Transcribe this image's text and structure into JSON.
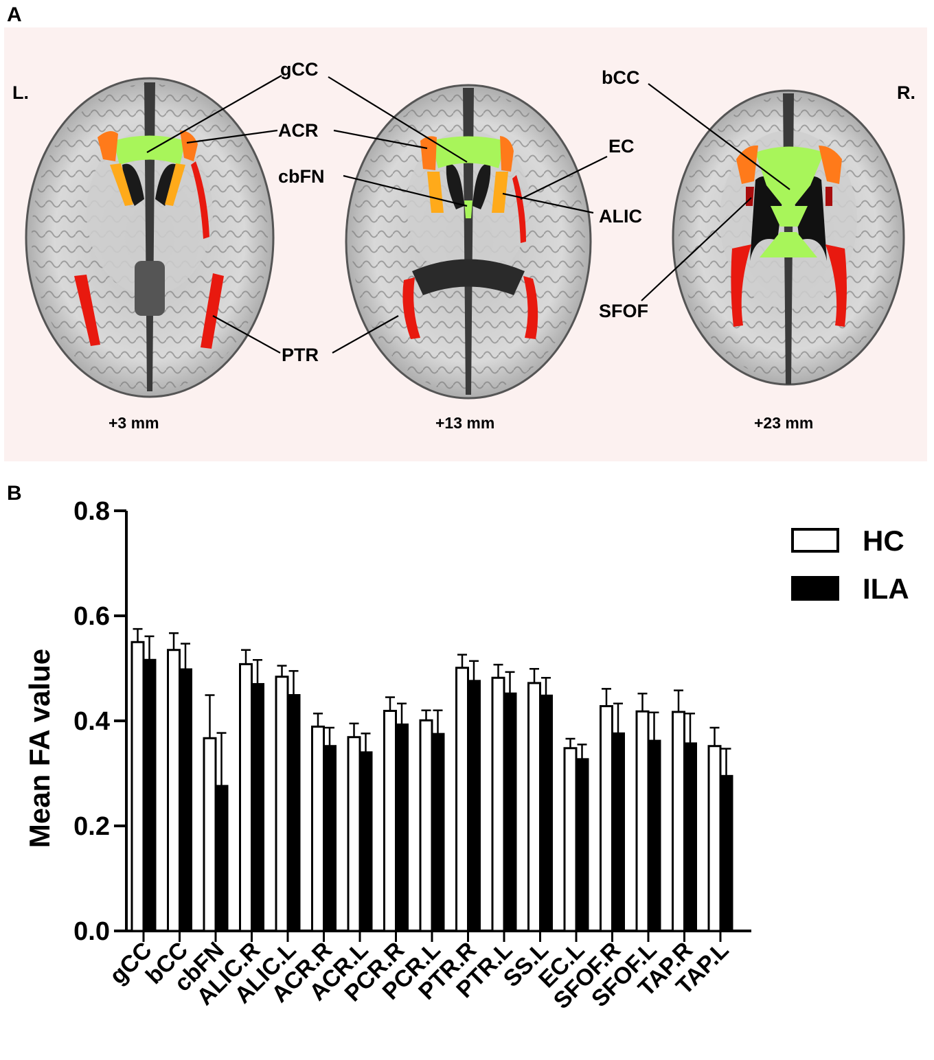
{
  "panel_a": {
    "letter": "A",
    "side_left": "L.",
    "side_right": "R.",
    "labels": {
      "gCC": "gCC",
      "ACR": "ACR",
      "cbFN": "cbFN",
      "EC": "EC",
      "ALIC": "ALIC",
      "PTR": "PTR",
      "bCC": "bCC",
      "SFOF": "SFOF"
    },
    "slices": [
      "+3 mm",
      "+13 mm",
      "+23 mm"
    ],
    "colors": {
      "background": "#fcf1f0",
      "green": "#a8f55a",
      "orange": "#ff7a1a",
      "amber": "#ffaa1a",
      "red": "#e8190f",
      "darkred": "#a80d0d"
    }
  },
  "panel_b": {
    "letter": "B",
    "legend": [
      {
        "label": "HC",
        "fill": "#ffffff"
      },
      {
        "label": "ILA",
        "fill": "#000000"
      }
    ]
  },
  "chart_data": {
    "type": "bar",
    "ylabel": "Mean FA value",
    "xlabel": "",
    "ylim": [
      0,
      0.8
    ],
    "yticks": [
      "0.0",
      "0.2",
      "0.4",
      "0.6",
      "0.8"
    ],
    "categories": [
      "gCC",
      "bCC",
      "cbFN",
      "ALIC.R",
      "ALIC.L",
      "ACR.R",
      "ACR.L",
      "PCR.R",
      "PCR.L",
      "PTR.R",
      "PTR.L",
      "SS.L",
      "EC.L",
      "SFOF.R",
      "SFOF.L",
      "TAP.R",
      "TAP.L"
    ],
    "series": [
      {
        "name": "HC",
        "fill": "#ffffff",
        "values": [
          0.55,
          0.535,
          0.367,
          0.508,
          0.484,
          0.389,
          0.369,
          0.419,
          0.401,
          0.501,
          0.482,
          0.472,
          0.348,
          0.428,
          0.418,
          0.417,
          0.352
        ],
        "errors": [
          0.025,
          0.032,
          0.082,
          0.027,
          0.021,
          0.025,
          0.026,
          0.026,
          0.019,
          0.025,
          0.025,
          0.027,
          0.018,
          0.033,
          0.034,
          0.041,
          0.035
        ]
      },
      {
        "name": "ILA",
        "fill": "#000000",
        "values": [
          0.516,
          0.498,
          0.276,
          0.47,
          0.449,
          0.352,
          0.34,
          0.393,
          0.375,
          0.476,
          0.452,
          0.448,
          0.327,
          0.376,
          0.362,
          0.357,
          0.295
        ],
        "errors": [
          0.045,
          0.049,
          0.101,
          0.046,
          0.046,
          0.035,
          0.036,
          0.04,
          0.045,
          0.038,
          0.041,
          0.034,
          0.028,
          0.057,
          0.054,
          0.057,
          0.052
        ]
      }
    ]
  }
}
